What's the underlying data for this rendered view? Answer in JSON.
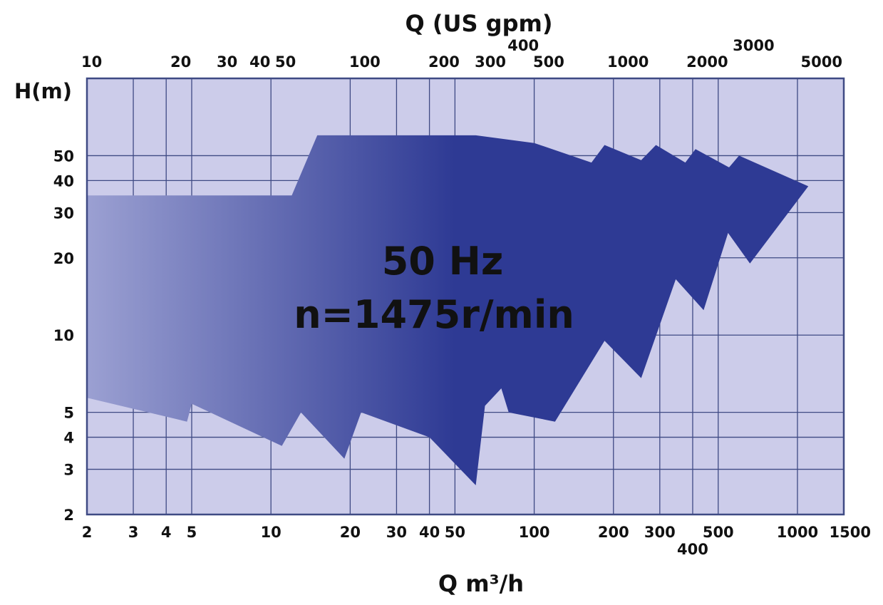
{
  "chart_data": {
    "type": "area",
    "top_axis_title": "Q (US gpm)",
    "left_axis_title": "H(m)",
    "bottom_axis_title": "Q m³/h",
    "annotation": [
      "50 Hz",
      "n=1475r/min"
    ],
    "x_scale": "log",
    "y_scale": "log",
    "xlim": [
      2,
      1500
    ],
    "ylim": [
      2,
      100
    ],
    "grid": true,
    "x_ticks": [
      {
        "value": 2,
        "label": "2"
      },
      {
        "value": 3,
        "label": "3"
      },
      {
        "value": 4,
        "label": "4"
      },
      {
        "value": 5,
        "label": "5"
      },
      {
        "value": 10,
        "label": "10"
      },
      {
        "value": 20,
        "label": "20"
      },
      {
        "value": 30,
        "label": "30"
      },
      {
        "value": 40,
        "label": "40"
      },
      {
        "value": 50,
        "label": "50"
      },
      {
        "value": 100,
        "label": "100"
      },
      {
        "value": 200,
        "label": "200"
      },
      {
        "value": 300,
        "label": "300"
      },
      {
        "value": 400,
        "label": "400"
      },
      {
        "value": 500,
        "label": "500"
      },
      {
        "value": 1000,
        "label": "1000"
      },
      {
        "value": 1500,
        "label": "1500"
      }
    ],
    "y_ticks": [
      {
        "value": 2,
        "label": "2"
      },
      {
        "value": 3,
        "label": "3"
      },
      {
        "value": 4,
        "label": "4"
      },
      {
        "value": 5,
        "label": "5"
      },
      {
        "value": 10,
        "label": "10"
      },
      {
        "value": 20,
        "label": "20"
      },
      {
        "value": 30,
        "label": "30"
      },
      {
        "value": 40,
        "label": "40"
      },
      {
        "value": 50,
        "label": "50"
      }
    ],
    "top_ticks": [
      {
        "value": 10,
        "label": "10"
      },
      {
        "value": 20,
        "label": "20"
      },
      {
        "value": 30,
        "label": "30"
      },
      {
        "value": 40,
        "label": "40"
      },
      {
        "value": 50,
        "label": "50"
      },
      {
        "value": 100,
        "label": "100"
      },
      {
        "value": 200,
        "label": "200"
      },
      {
        "value": 300,
        "label": "300"
      },
      {
        "value": 400,
        "label": "400"
      },
      {
        "value": 500,
        "label": "500"
      },
      {
        "value": 1000,
        "label": "1000"
      },
      {
        "value": 2000,
        "label": "2000"
      },
      {
        "value": 3000,
        "label": "3000"
      },
      {
        "value": 5000,
        "label": "5000"
      }
    ],
    "performance_region": [
      [
        2,
        35
      ],
      [
        12,
        35
      ],
      [
        15,
        60
      ],
      [
        60,
        60
      ],
      [
        100,
        56
      ],
      [
        165,
        47
      ],
      [
        185,
        55
      ],
      [
        255,
        48
      ],
      [
        290,
        55
      ],
      [
        375,
        47
      ],
      [
        410,
        53
      ],
      [
        550,
        45
      ],
      [
        600,
        50
      ],
      [
        1100,
        38
      ],
      [
        660,
        19
      ],
      [
        545,
        25
      ],
      [
        440,
        12.5
      ],
      [
        345,
        16.5
      ],
      [
        255,
        6.8
      ],
      [
        185,
        9.5
      ],
      [
        120,
        4.6
      ],
      [
        80,
        5
      ],
      [
        75,
        6.2
      ],
      [
        65,
        5.3
      ],
      [
        60,
        2.6
      ],
      [
        40,
        4
      ],
      [
        22,
        5
      ],
      [
        19,
        3.3
      ],
      [
        13,
        5
      ],
      [
        11,
        3.7
      ],
      [
        5,
        5.4
      ],
      [
        4.8,
        4.6
      ],
      [
        2,
        5.7
      ]
    ],
    "colors": {
      "plot_background": "#ccccea",
      "grid": "#3f4a84",
      "region_light": "#9ba0d2",
      "region_dark": "#2e3a94",
      "label": "#111111"
    }
  }
}
